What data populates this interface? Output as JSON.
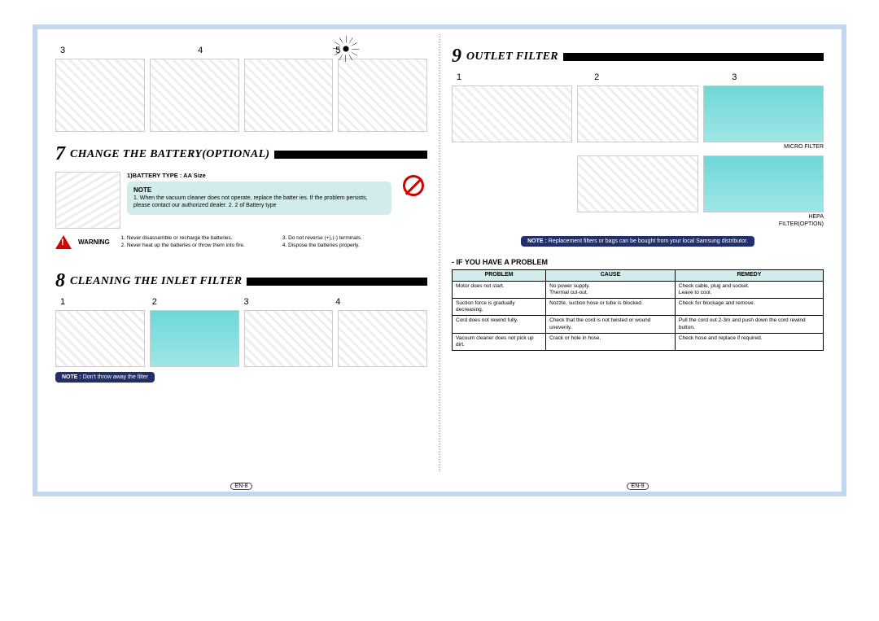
{
  "left": {
    "topSteps": [
      "3",
      "4",
      "5"
    ],
    "section7": {
      "num": "7",
      "title": "CHANGE THE BATTERY(OPTIONAL)",
      "batteryType": "1)BATTERY TYPE : AA Size",
      "noteLabel": "NOTE",
      "noteLines": "1. When the vacuum cleaner does not operate, replace the  batter ies. If the problem persists, please contact our authorized dealer. 2. 2 of Battery type",
      "warningLabel": "WARNING",
      "warnColA": "1. Never disassemble or recharge the batteries.\n2. Never heat up the batteries or throw them into fire.",
      "warnColB": "3. Do not reverse (+),(-) terminals.\n4. Dispose the batteries properly."
    },
    "section8": {
      "num": "8",
      "title": "CLEANING THE INLET FILTER",
      "steps": [
        "1",
        "2",
        "3",
        "4"
      ],
      "notePillLabel": "NOTE :",
      "notePillText": "Don't throw away the filter"
    },
    "pageNum": "EN-8"
  },
  "right": {
    "section9": {
      "num": "9",
      "title": "OUTLET FILTER",
      "steps": [
        "1",
        "2",
        "3"
      ],
      "label1": "MICRO FILTER",
      "label2a": "HEPA",
      "label2b": "FILTER(OPTION)",
      "notePillLabel": "NOTE :",
      "notePillText": "Replacement filters or bags can be bought from your local Samsung distributor."
    },
    "problemHead": "- IF YOU HAVE A PROBLEM",
    "table": {
      "headers": [
        "PROBLEM",
        "CAUSE",
        "REMEDY"
      ],
      "rows": [
        [
          "Motor does not start.",
          "No power supply.\nThermal cut-out.",
          "Check cable, plug and socket.\nLeave to cool."
        ],
        [
          "Suction force is gradually decreasing.",
          "Nozzle, suction hose or tube is blocked.",
          "Check for blockage and remove."
        ],
        [
          "Cord does not rewind fully.",
          "Check that the cord is not twisted or wound unevenly.",
          "Pull the cord out 2-3m and push down the cord rewind button."
        ],
        [
          "Vacuum cleaner does not pick up dirt.",
          "Crack or hole in hose.",
          "Check hose and replace if required."
        ]
      ]
    },
    "pageNum": "EN-9"
  },
  "colors": {
    "frame": "#c4d7f0",
    "noteBox": "#d2ecec",
    "pill": "#232f6b",
    "warnRed": "#d40000"
  }
}
